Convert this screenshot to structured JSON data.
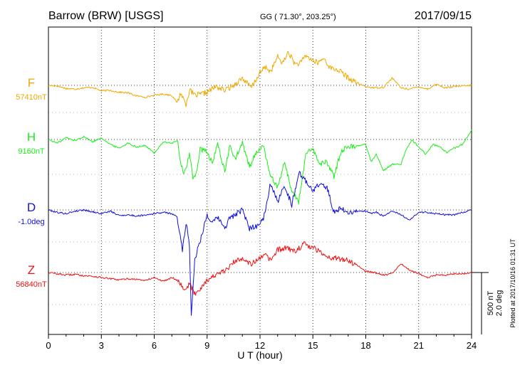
{
  "header": {
    "station": "Barrow (BRW)  [USGS]",
    "coords": "GG ( 71.30°, 203.25°)",
    "date": "2017/09/15"
  },
  "footer": {
    "plotted": "Plotted at 2017/10/16 01:31 UT"
  },
  "scale": {
    "nt": "500 nT",
    "deg": "2.0 deg"
  },
  "chart_data": {
    "type": "line",
    "xlabel": "U T (hour)",
    "xlim": [
      0,
      24
    ],
    "xticks": [
      "0",
      "3",
      "6",
      "9",
      "12",
      "15",
      "18",
      "21",
      "24"
    ],
    "grid": true,
    "series": [
      {
        "name": "F",
        "baseline_label": "57410nT",
        "color": "#f0a800",
        "x": [
          0,
          0.5,
          1,
          1.5,
          2,
          2.5,
          3,
          3.5,
          4,
          4.5,
          5,
          5.5,
          6,
          6.5,
          7,
          7.3,
          7.5,
          7.8,
          8,
          8.3,
          8.6,
          9,
          9.5,
          10,
          10.5,
          11,
          11.5,
          12,
          12.3,
          12.6,
          13,
          13.3,
          13.6,
          14,
          14.3,
          14.6,
          15,
          15.3,
          15.6,
          16,
          16.5,
          17,
          17.5,
          18,
          18.5,
          19,
          19.5,
          20,
          20.5,
          21,
          21.5,
          22,
          22.5,
          23,
          23.5,
          24
        ],
        "values": [
          0,
          -5,
          -25,
          -30,
          -20,
          -15,
          -45,
          -40,
          -55,
          -60,
          -85,
          -95,
          -80,
          -70,
          -80,
          -140,
          -60,
          -150,
          -40,
          -80,
          -75,
          -55,
          -10,
          -40,
          0,
          60,
          -20,
          100,
          150,
          110,
          230,
          180,
          270,
          170,
          180,
          240,
          200,
          180,
          220,
          140,
          120,
          60,
          20,
          -10,
          -20,
          -15,
          60,
          -20,
          -30,
          -10,
          -30,
          10,
          -20,
          -10,
          -5,
          0
        ]
      },
      {
        "name": "H",
        "baseline_label": "9160nT",
        "color": "#1aee1a",
        "x": [
          0,
          0.5,
          1,
          1.5,
          2,
          2.5,
          3,
          3.5,
          4,
          4.5,
          5,
          5.5,
          6,
          6.5,
          7,
          7.3,
          7.5,
          7.7,
          8,
          8.2,
          8.4,
          8.6,
          9,
          9.3,
          9.6,
          10,
          10.3,
          10.6,
          11,
          11.4,
          11.8,
          12.2,
          12.6,
          13,
          13.4,
          13.8,
          14.2,
          14.6,
          15,
          15.4,
          15.8,
          16.2,
          16.6,
          17,
          17.5,
          18,
          18.3,
          18.6,
          19,
          19.5,
          20,
          20.3,
          20.6,
          21,
          21.4,
          21.8,
          22.2,
          22.6,
          23,
          23.5,
          24
        ],
        "values": [
          0,
          -30,
          15,
          -10,
          25,
          -20,
          15,
          -40,
          -70,
          -30,
          -60,
          -50,
          -110,
          -20,
          -30,
          -10,
          -180,
          -280,
          -120,
          -320,
          -260,
          -80,
          -100,
          -200,
          -30,
          -260,
          -50,
          -160,
          -30,
          -220,
          -100,
          -60,
          -300,
          -380,
          -180,
          -420,
          -500,
          -120,
          -80,
          -200,
          -180,
          -300,
          -90,
          -60,
          -50,
          -40,
          -180,
          -120,
          -250,
          -200,
          -200,
          -80,
          0,
          -60,
          -120,
          -40,
          -60,
          -110,
          -70,
          -40,
          80
        ]
      },
      {
        "name": "D",
        "baseline_label": "-1.0deg",
        "color": "#1010e0",
        "x": [
          0,
          0.5,
          1,
          1.5,
          2,
          2.5,
          3,
          3.5,
          4,
          4.5,
          5,
          5.5,
          6,
          6.5,
          7,
          7.3,
          7.6,
          7.8,
          8,
          8.1,
          8.3,
          8.5,
          9,
          9.3,
          9.6,
          10,
          10.3,
          10.6,
          11,
          11.4,
          11.8,
          12.2,
          12.6,
          13,
          13.4,
          13.8,
          14.2,
          14.6,
          15,
          15.4,
          15.8,
          16.2,
          16.6,
          17,
          17.5,
          18,
          18.3,
          18.6,
          19,
          19.5,
          20,
          20.5,
          21,
          21.5,
          22,
          22.5,
          23,
          23.5,
          24
        ],
        "values": [
          0,
          -20,
          -30,
          -10,
          0,
          -15,
          -30,
          -10,
          -45,
          -40,
          -50,
          -40,
          -30,
          -20,
          -30,
          -60,
          -320,
          -100,
          -280,
          -850,
          -400,
          -300,
          -40,
          -110,
          -60,
          -150,
          -60,
          -40,
          0,
          -150,
          -130,
          -70,
          220,
          60,
          200,
          40,
          300,
          230,
          160,
          210,
          180,
          -20,
          20,
          -30,
          -10,
          -10,
          -30,
          -20,
          -50,
          -10,
          -40,
          -80,
          -20,
          -20,
          -30,
          -40,
          -40,
          -20,
          0
        ]
      },
      {
        "name": "Z",
        "baseline_label": "56840nT",
        "color": "#f01010",
        "x": [
          0,
          0.5,
          1,
          1.5,
          2,
          2.5,
          3,
          3.5,
          4,
          4.5,
          5,
          5.5,
          6,
          6.5,
          7,
          7.3,
          7.6,
          7.8,
          8,
          8.3,
          8.6,
          9,
          9.5,
          10,
          10.5,
          11,
          11.5,
          12,
          12.3,
          12.6,
          13,
          13.5,
          14,
          14.5,
          15,
          15.5,
          16,
          16.5,
          17,
          17.5,
          18,
          18.5,
          19,
          19.5,
          20,
          20.5,
          21,
          21.5,
          22,
          22.5,
          23,
          23.5,
          24
        ],
        "values": [
          0,
          -10,
          -20,
          -15,
          -25,
          -30,
          -40,
          -50,
          -60,
          -50,
          -55,
          -65,
          -40,
          -70,
          -40,
          -60,
          -110,
          -140,
          -90,
          -170,
          -130,
          -60,
          -20,
          10,
          80,
          120,
          70,
          110,
          140,
          100,
          180,
          200,
          170,
          230,
          200,
          160,
          120,
          110,
          100,
          60,
          10,
          0,
          -20,
          -10,
          70,
          20,
          -10,
          -40,
          -20,
          -20,
          -10,
          -10,
          0
        ]
      }
    ]
  }
}
